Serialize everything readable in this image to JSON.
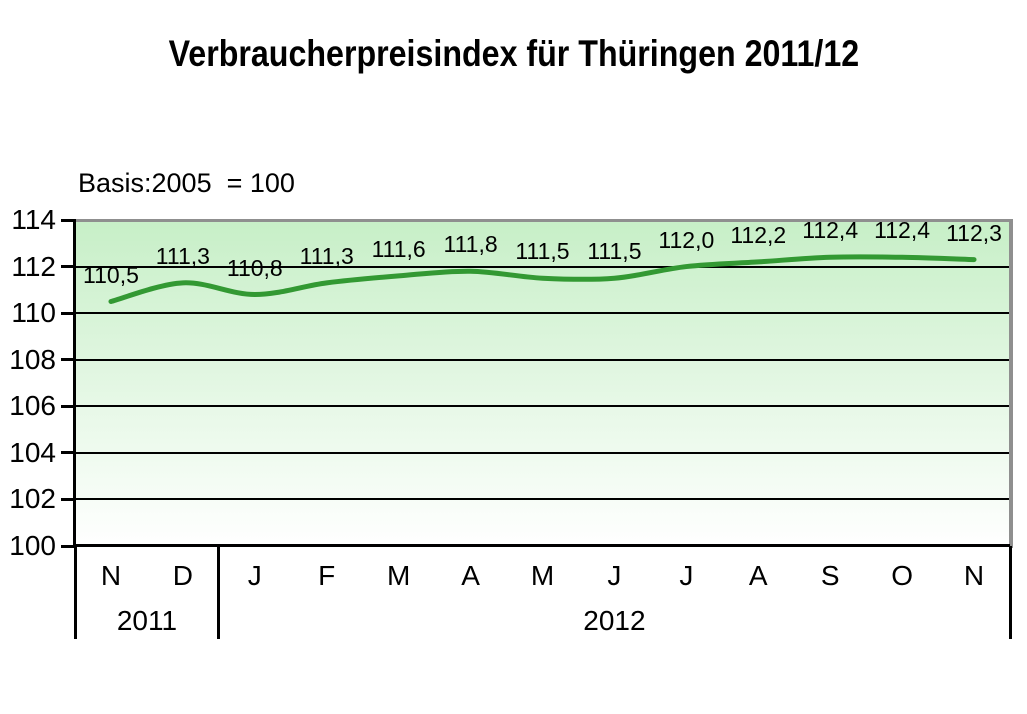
{
  "chart_data": {
    "type": "line",
    "title": "Verbraucherpreisindex für Thüringen 2011/12",
    "subtitle": "Basis:2005  = 100",
    "categories": [
      "N",
      "D",
      "J",
      "F",
      "M",
      "A",
      "M",
      "J",
      "J",
      "A",
      "S",
      "O",
      "N"
    ],
    "year_groups": [
      {
        "label": "2011",
        "months": 2
      },
      {
        "label": "2012",
        "months": 11
      }
    ],
    "values": [
      110.5,
      111.3,
      110.8,
      111.3,
      111.6,
      111.8,
      111.5,
      111.5,
      112.0,
      112.2,
      112.4,
      112.4,
      112.3
    ],
    "data_labels": [
      "110,5",
      "111,3",
      "110,8",
      "111,3",
      "111,6",
      "111,8",
      "111,5",
      "111,5",
      "112,0",
      "112,2",
      "112,4",
      "112,4",
      "112,3"
    ],
    "ylim": [
      100,
      114
    ],
    "y_ticks": [
      114,
      112,
      110,
      108,
      106,
      104,
      102,
      100
    ],
    "grid": true,
    "smoothed": true,
    "legend": "none",
    "line_color": "#339933",
    "axis_color": "#000000",
    "border_color": "#8f8f8f",
    "plot_bg_top": "#c7efc7",
    "plot_bg_bottom": "#ffffff"
  }
}
